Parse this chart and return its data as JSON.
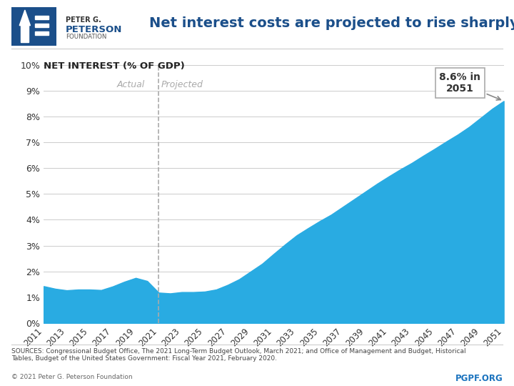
{
  "title": "Net interest costs are projected to rise sharply",
  "ylabel": "NET INTEREST (% OF GDP)",
  "fill_color": "#29ABE2",
  "background_color": "#FFFFFF",
  "divider_year": 2021,
  "actual_label": "Actual",
  "projected_label": "Projected",
  "annotation_text": "8.6% in\n2051",
  "ylim": [
    0,
    0.1
  ],
  "yticks": [
    0.0,
    0.01,
    0.02,
    0.03,
    0.04,
    0.05,
    0.06,
    0.07,
    0.08,
    0.09,
    0.1
  ],
  "ytick_labels": [
    "0%",
    "1%",
    "2%",
    "3%",
    "4%",
    "5%",
    "6%",
    "7%",
    "8%",
    "9%",
    "10%"
  ],
  "copyright_text": "© 2021 Peter G. Peterson Foundation",
  "pgpf_text": "PGPF.ORG",
  "logo_box_color": "#1B4F8A",
  "years": [
    2011,
    2012,
    2013,
    2014,
    2015,
    2016,
    2017,
    2018,
    2019,
    2020,
    2021,
    2022,
    2023,
    2024,
    2025,
    2026,
    2027,
    2028,
    2029,
    2030,
    2031,
    2032,
    2033,
    2034,
    2035,
    2036,
    2037,
    2038,
    2039,
    2040,
    2041,
    2042,
    2043,
    2044,
    2045,
    2046,
    2047,
    2048,
    2049,
    2050,
    2051
  ],
  "values": [
    0.0143,
    0.0133,
    0.0127,
    0.013,
    0.013,
    0.0128,
    0.0142,
    0.016,
    0.0175,
    0.0163,
    0.0118,
    0.0115,
    0.012,
    0.012,
    0.0122,
    0.013,
    0.0148,
    0.017,
    0.02,
    0.023,
    0.0268,
    0.0305,
    0.034,
    0.0368,
    0.0395,
    0.042,
    0.045,
    0.048,
    0.051,
    0.054,
    0.0568,
    0.0595,
    0.062,
    0.0648,
    0.0675,
    0.0703,
    0.073,
    0.076,
    0.0795,
    0.083,
    0.086
  ],
  "title_color": "#1B4F8A",
  "tick_label_color": "#333333",
  "divider_color": "#AAAAAA",
  "annotation_color": "#333333",
  "pgpf_color": "#1B73BE",
  "peter_g_text": "PETER G.",
  "peterson_text": "PETERSON",
  "foundation_text": "FOUNDATION",
  "source_line1": "SOURCES: Congressional Budget Office, ",
  "source_line1_italic": "The 2021 Long-Term Budget Outlook",
  "source_line1_rest": ", March 2021; and Office of Management and Budget, ",
  "source_line1_italic2": "Historical Tables,",
  "source_line2": "Budget of the United States Government: Fiscal Year 2021",
  "source_line2_rest": ", February 2020."
}
